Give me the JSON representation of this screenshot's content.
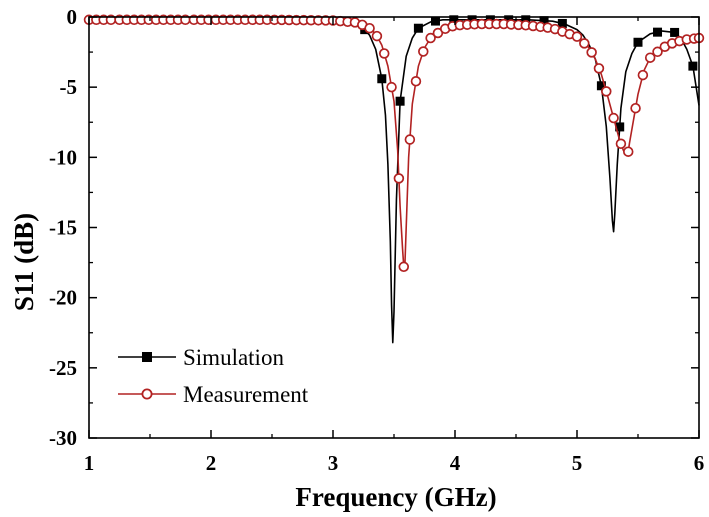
{
  "chart_data": {
    "type": "line",
    "xlabel": "Frequency (GHz)",
    "ylabel": "S11 (dB)",
    "xlim": [
      1,
      6
    ],
    "ylim": [
      -30,
      0
    ],
    "xticks": [
      "1",
      "2",
      "3",
      "4",
      "5",
      "6"
    ],
    "yticks": [
      "0",
      "-5",
      "-10",
      "-15",
      "-20",
      "-25",
      "-30"
    ],
    "grid": false,
    "legend": "bottom-left",
    "series": [
      {
        "name": "Simulation",
        "color": "#000000",
        "marker": "filled-square",
        "x": [
          1.0,
          1.5,
          2.0,
          2.5,
          3.0,
          3.1,
          3.2,
          3.25,
          3.3,
          3.35,
          3.4,
          3.43,
          3.45,
          3.47,
          3.48,
          3.49,
          3.5,
          3.52,
          3.55,
          3.6,
          3.65,
          3.7,
          3.8,
          3.9,
          4.0,
          4.2,
          4.4,
          4.6,
          4.8,
          4.9,
          5.0,
          5.05,
          5.1,
          5.15,
          5.2,
          5.24,
          5.27,
          5.29,
          5.3,
          5.31,
          5.33,
          5.36,
          5.4,
          5.45,
          5.5,
          5.6,
          5.7,
          5.8,
          5.85,
          5.9,
          5.95,
          6.0
        ],
        "y": [
          -0.2,
          -0.2,
          -0.2,
          -0.2,
          -0.2,
          -0.3,
          -0.5,
          -0.8,
          -1.3,
          -2.3,
          -4.4,
          -7.0,
          -10.5,
          -16.0,
          -20.5,
          -23.2,
          -21.0,
          -13.0,
          -6.0,
          -2.8,
          -1.5,
          -0.8,
          -0.35,
          -0.2,
          -0.2,
          -0.2,
          -0.2,
          -0.2,
          -0.3,
          -0.5,
          -0.9,
          -1.3,
          -2.0,
          -3.0,
          -4.9,
          -7.8,
          -11.5,
          -14.5,
          -15.3,
          -14.0,
          -10.5,
          -6.5,
          -3.9,
          -2.6,
          -1.8,
          -1.2,
          -1.0,
          -1.1,
          -1.5,
          -2.3,
          -3.5,
          -6.3
        ],
        "marker_x": [
          3.26,
          3.4,
          3.55,
          3.7,
          3.84,
          3.99,
          4.14,
          4.29,
          4.44,
          4.58,
          4.73,
          4.88,
          5.2,
          5.35,
          5.5,
          5.66,
          5.8,
          5.95
        ]
      },
      {
        "name": "Measurement",
        "color": "#b22222",
        "marker": "open-circle",
        "x": [
          1.0,
          1.5,
          2.0,
          2.5,
          3.0,
          3.2,
          3.3,
          3.35,
          3.4,
          3.45,
          3.5,
          3.53,
          3.55,
          3.57,
          3.58,
          3.59,
          3.6,
          3.62,
          3.65,
          3.7,
          3.75,
          3.8,
          3.9,
          4.0,
          4.2,
          4.4,
          4.6,
          4.8,
          5.0,
          5.1,
          5.15,
          5.2,
          5.25,
          5.3,
          5.35,
          5.38,
          5.4,
          5.42,
          5.43,
          5.45,
          5.5,
          5.55,
          5.6,
          5.7,
          5.8,
          5.9,
          6.0
        ],
        "y": [
          -0.2,
          -0.2,
          -0.2,
          -0.2,
          -0.25,
          -0.4,
          -0.8,
          -1.2,
          -2.0,
          -3.5,
          -6.0,
          -9.5,
          -13.5,
          -16.5,
          -17.8,
          -17.5,
          -15.0,
          -10.0,
          -6.2,
          -3.5,
          -2.2,
          -1.5,
          -0.9,
          -0.6,
          -0.5,
          -0.5,
          -0.6,
          -0.8,
          -1.4,
          -2.2,
          -3.0,
          -4.1,
          -5.6,
          -7.2,
          -8.8,
          -9.5,
          -9.7,
          -9.6,
          -9.0,
          -8.0,
          -5.5,
          -3.8,
          -2.9,
          -2.2,
          -1.8,
          -1.6,
          -1.5
        ],
        "marker_x": [
          1.0,
          1.06,
          1.12,
          1.18,
          1.25,
          1.31,
          1.37,
          1.43,
          1.49,
          1.55,
          1.61,
          1.67,
          1.73,
          1.79,
          1.86,
          1.92,
          1.98,
          2.04,
          2.1,
          2.16,
          2.22,
          2.28,
          2.34,
          2.4,
          2.46,
          2.52,
          2.58,
          2.64,
          2.7,
          2.76,
          2.82,
          2.88,
          2.94,
          3.0,
          3.06,
          3.12,
          3.18,
          3.24,
          3.3,
          3.36,
          3.42,
          3.48,
          3.54,
          3.58,
          3.63,
          3.68,
          3.74,
          3.8,
          3.86,
          3.92,
          3.98,
          4.04,
          4.1,
          4.16,
          4.22,
          4.28,
          4.34,
          4.4,
          4.46,
          4.52,
          4.58,
          4.64,
          4.7,
          4.76,
          4.82,
          4.88,
          4.94,
          5.0,
          5.06,
          5.12,
          5.18,
          5.24,
          5.3,
          5.36,
          5.42,
          5.48,
          5.54,
          5.6,
          5.66,
          5.72,
          5.78,
          5.84,
          5.9,
          5.96,
          6.0
        ]
      }
    ]
  }
}
